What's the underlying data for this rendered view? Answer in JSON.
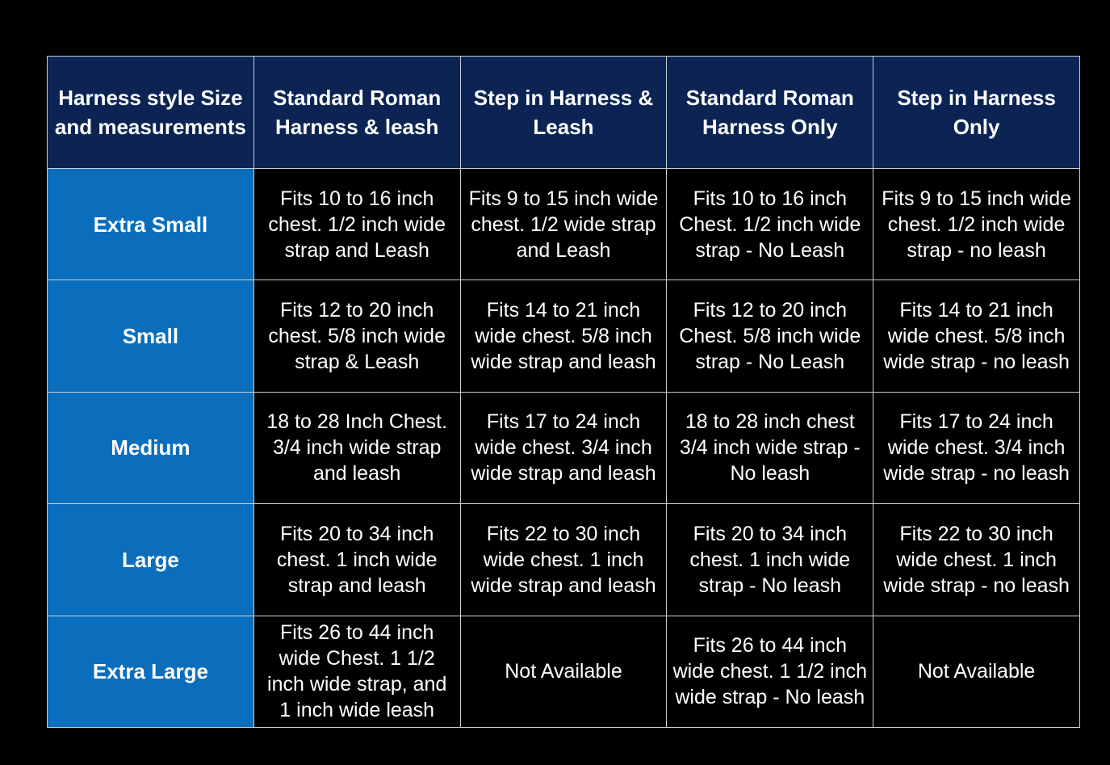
{
  "table": {
    "headers": [
      "Harness style Size and measurements",
      "Standard Roman Harness & leash",
      "Step in Harness & Leash",
      "Standard Roman Harness Only",
      "Step in Harness Only"
    ],
    "rows": [
      {
        "size": "Extra Small",
        "cells": [
          "Fits 10 to 16 inch chest. 1/2 inch wide strap and Leash",
          "Fits 9 to 15 inch wide chest. 1/2 wide strap and Leash",
          "Fits 10 to 16 inch Chest. 1/2 inch wide strap - No Leash",
          "Fits 9 to 15 inch wide chest. 1/2 inch wide strap - no leash"
        ]
      },
      {
        "size": "Small",
        "cells": [
          "Fits 12 to 20 inch chest. 5/8 inch wide strap & Leash",
          "Fits 14 to 21 inch wide chest. 5/8 inch wide strap and leash",
          "Fits 12 to 20 inch Chest. 5/8 inch wide strap - No Leash",
          "Fits 14 to 21 inch wide chest. 5/8 inch wide strap - no leash"
        ]
      },
      {
        "size": "Medium",
        "cells": [
          "18 to 28 Inch Chest. 3/4 inch wide strap and leash",
          "Fits 17 to 24 inch wide chest. 3/4 inch wide strap and leash",
          "18 to 28 inch chest 3/4 inch wide strap - No leash",
          "Fits 17 to 24 inch wide chest. 3/4 inch wide strap - no leash"
        ]
      },
      {
        "size": "Large",
        "cells": [
          "Fits 20 to 34 inch chest. 1 inch wide strap and leash",
          "Fits 22 to 30 inch wide chest. 1 inch wide strap and leash",
          "Fits 20 to 34 inch chest. 1 inch wide strap - No leash",
          "Fits 22 to 30 inch wide chest. 1 inch wide strap - no leash"
        ]
      },
      {
        "size": "Extra Large",
        "cells": [
          "Fits 26 to 44 inch wide Chest. 1 1/2 inch wide strap, and 1 inch wide leash",
          "Not Available",
          "Fits 26 to 44 inch wide chest. 1 1/2 inch wide strap - No leash",
          "Not Available"
        ]
      }
    ]
  },
  "colors": {
    "header_bg": "#0b2454",
    "size_bg": "#0a6ebd",
    "page_bg": "#000000"
  }
}
